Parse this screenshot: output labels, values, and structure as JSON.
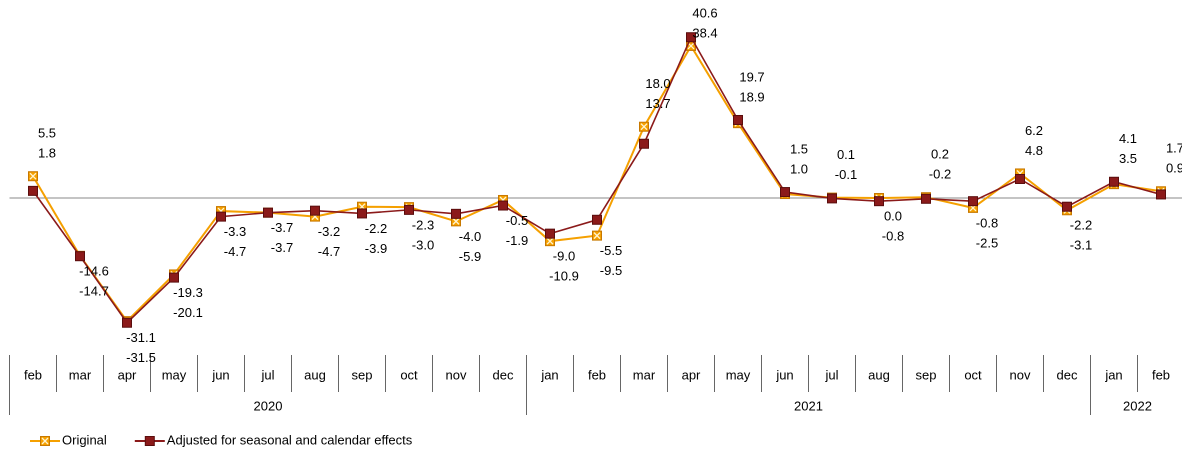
{
  "chart_data": {
    "type": "line",
    "categories": [
      "feb",
      "mar",
      "apr",
      "may",
      "jun",
      "jul",
      "aug",
      "sep",
      "oct",
      "nov",
      "dec",
      "jan",
      "feb",
      "mar",
      "apr",
      "may",
      "jun",
      "jul",
      "aug",
      "sep",
      "oct",
      "nov",
      "dec",
      "jan",
      "feb"
    ],
    "groups": [
      {
        "label": "2020",
        "count": 11
      },
      {
        "label": "2021",
        "count": 12
      },
      {
        "label": "2022",
        "count": 2
      }
    ],
    "ylim": [
      -35,
      45
    ],
    "legend": "bottom-left",
    "series": [
      {
        "name": "Original",
        "color": "#f5a000",
        "marker": "x-square",
        "values": [
          5.5,
          -14.6,
          -31.1,
          -19.3,
          -3.3,
          -3.7,
          -4.7,
          -2.2,
          -2.3,
          -5.9,
          -0.5,
          -10.9,
          -9.5,
          18.0,
          38.4,
          18.9,
          1.0,
          0.1,
          0.0,
          0.2,
          -2.5,
          6.2,
          -3.1,
          3.5,
          1.7
        ],
        "value_labels": [
          "5.5",
          "-14.6",
          "-31.1",
          "-19.3",
          "-3.3",
          "-3.7",
          "-4.7",
          "-2.2",
          "-2.3",
          "-5.9",
          "-0.5",
          "-10.9",
          "-9.5",
          "18.0",
          "38.4",
          "18.9",
          "1.0",
          "0.1",
          "0.0",
          "0.2",
          "-2.5",
          "6.2",
          "-3.1",
          "3.5",
          "1.7"
        ]
      },
      {
        "name": "Adjusted for seasonal and calendar effects",
        "color": "#8b1a1a",
        "marker": "square",
        "values": [
          1.8,
          -14.7,
          -31.5,
          -20.1,
          -4.7,
          -3.7,
          -3.2,
          -3.9,
          -3.0,
          -4.0,
          -1.9,
          -9.0,
          -5.5,
          13.7,
          40.6,
          19.7,
          1.5,
          -0.1,
          -0.8,
          -0.2,
          -0.8,
          4.8,
          -2.2,
          4.1,
          0.9
        ],
        "value_labels": [
          "1.8",
          "-14.7",
          "-31.5",
          "-20.1",
          "-4.7",
          "-3.7",
          "-3.2",
          "-3.9",
          "-3.0",
          "-4.0",
          "-1.9",
          "-9.0",
          "-5.5",
          "13.7",
          "40.6",
          "19.7",
          "1.5",
          "-0.1",
          "-0.8",
          "-0.2",
          "-0.8",
          "4.8",
          "-2.2",
          "4.1",
          "0.9"
        ]
      }
    ]
  }
}
